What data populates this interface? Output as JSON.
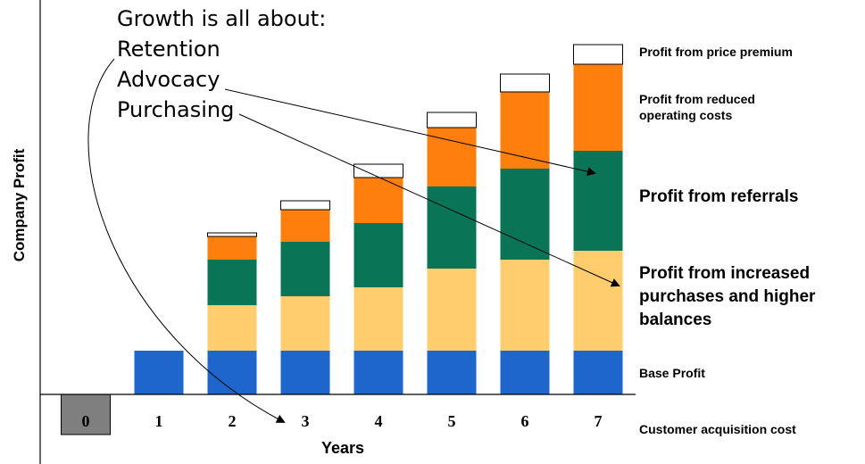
{
  "heading": {
    "title": "Growth is all about:",
    "items": [
      "Retention",
      "Advocacy",
      "Purchasing"
    ]
  },
  "colors": {
    "base": "#1F66CC",
    "purchases": "#FFCC6E",
    "referrals": "#0A7456",
    "operating": "#FF7F0E",
    "premium": "#FFFFFF",
    "acquisition": "#7F7F7F"
  },
  "chart_data": {
    "type": "bar",
    "stacked": true,
    "categories": [
      "0",
      "1",
      "2",
      "3",
      "4",
      "5",
      "6",
      "7"
    ],
    "xlabel": "Years",
    "ylabel": "Company Profit",
    "ylim": [
      -50,
      400
    ],
    "series": [
      {
        "name": "Customer acquisition cost",
        "key": "acquisition",
        "values": [
          -45,
          0,
          0,
          0,
          0,
          0,
          0,
          0
        ]
      },
      {
        "name": "Base Profit",
        "key": "base",
        "values": [
          0,
          49,
          49,
          49,
          49,
          49,
          49,
          49
        ]
      },
      {
        "name": "Profit from increased purchases and higher balances",
        "key": "purchases",
        "values": [
          0,
          0,
          51,
          61,
          71,
          92,
          102,
          112
        ]
      },
      {
        "name": "Profit from referrals",
        "key": "referrals",
        "values": [
          0,
          0,
          51,
          61,
          72,
          92,
          102,
          112
        ]
      },
      {
        "name": "Profit from reduced operating costs",
        "key": "operating",
        "values": [
          0,
          0,
          26,
          36,
          51,
          66,
          86,
          97
        ]
      },
      {
        "name": "Profit from price premium",
        "key": "premium",
        "values": [
          0,
          0,
          4,
          10,
          15,
          17,
          20,
          22
        ]
      }
    ]
  },
  "legend": {
    "premium": "Profit from price premium",
    "operating_1": "Profit from reduced",
    "operating_2": "operating costs",
    "referrals": "Profit from referrals",
    "purchases_1": "Profit from increased",
    "purchases_2": "purchases and higher",
    "purchases_3": "balances",
    "base": "Base Profit",
    "acquisition": "Customer acquisition cost"
  }
}
